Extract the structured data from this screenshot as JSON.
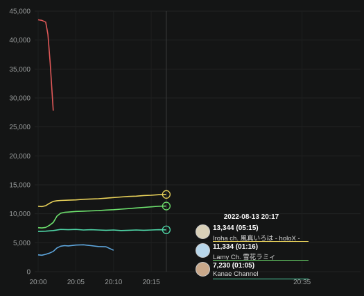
{
  "chart_data": {
    "type": "line",
    "y_ticks": [
      "0",
      "5,000",
      "10,000",
      "15,000",
      "20,000",
      "25,000",
      "30,000",
      "35,000",
      "40,000",
      "45,000"
    ],
    "x_ticks": [
      "20:00",
      "20:05",
      "20:10",
      "20:15",
      "20:35"
    ],
    "ylim": [
      0,
      45000
    ],
    "xlim_minutes_from_2000": [
      0,
      40
    ],
    "grid": true,
    "hover_minute": 17,
    "series": [
      {
        "name": "Iroha ch. 風真いろは - holoX -",
        "color": "#e9d25a",
        "x": [
          0,
          0.5,
          1,
          1.5,
          2,
          2.5,
          3,
          4,
          5,
          6,
          7,
          8,
          9,
          10,
          11,
          12,
          13,
          14,
          15,
          16,
          17
        ],
        "values": [
          11300,
          11250,
          11400,
          11800,
          12150,
          12250,
          12300,
          12350,
          12400,
          12500,
          12550,
          12600,
          12700,
          12800,
          12900,
          13000,
          13050,
          13150,
          13200,
          13300,
          13344
        ]
      },
      {
        "name": "Lamy Ch. 雪花ラミィ",
        "color": "#6de06d",
        "x": [
          0,
          0.5,
          1,
          1.5,
          2,
          2.5,
          3,
          3.5,
          4,
          5,
          6,
          7,
          8,
          9,
          10,
          11,
          12,
          13,
          14,
          15,
          16,
          17
        ],
        "values": [
          7600,
          7550,
          7650,
          8000,
          8500,
          9600,
          10100,
          10250,
          10300,
          10400,
          10450,
          10500,
          10550,
          10650,
          10700,
          10800,
          10900,
          11000,
          11100,
          11200,
          11300,
          11334
        ]
      },
      {
        "name": "Kanae Channel",
        "color": "#4fd7a8",
        "x": [
          0,
          1,
          2,
          3,
          4,
          5,
          6,
          7,
          8,
          9,
          10,
          11,
          12,
          13,
          14,
          15,
          16,
          17
        ],
        "values": [
          6950,
          7000,
          7100,
          7300,
          7250,
          7300,
          7200,
          7250,
          7200,
          7150,
          7200,
          7100,
          7150,
          7200,
          7150,
          7200,
          7250,
          7230
        ]
      },
      {
        "name": "",
        "color": "#5ea6dd",
        "x": [
          0,
          0.5,
          1,
          1.5,
          2,
          2.5,
          3,
          3.5,
          4,
          5,
          6,
          7,
          8,
          9,
          10
        ],
        "values": [
          2900,
          2850,
          3000,
          3200,
          3500,
          4100,
          4400,
          4500,
          4450,
          4600,
          4650,
          4500,
          4350,
          4300,
          3700
        ]
      },
      {
        "name": "",
        "color": "#e05858",
        "x": [
          0,
          0.5,
          1,
          1.3,
          1.6,
          2
        ],
        "values": [
          43500,
          43400,
          43100,
          41000,
          36000,
          27800
        ]
      }
    ]
  },
  "tooltip": {
    "time": "2022-08-13 20:17",
    "rows": [
      {
        "value": "13,344 (05:15)",
        "name": "Iroha ch. 風真いろは - holoX -",
        "color": "#e9d25a",
        "avatar_bg": "#d9d0b8"
      },
      {
        "value": "11,334 (01:16)",
        "name": "Lamy Ch. 雪花ラミィ",
        "color": "#6de06d",
        "avatar_bg": "#b8d6ea"
      },
      {
        "value": "7,230 (01:05)",
        "name": "Kanae Channel",
        "color": "#4fd7a8",
        "avatar_bg": "#c9a88a"
      }
    ]
  }
}
